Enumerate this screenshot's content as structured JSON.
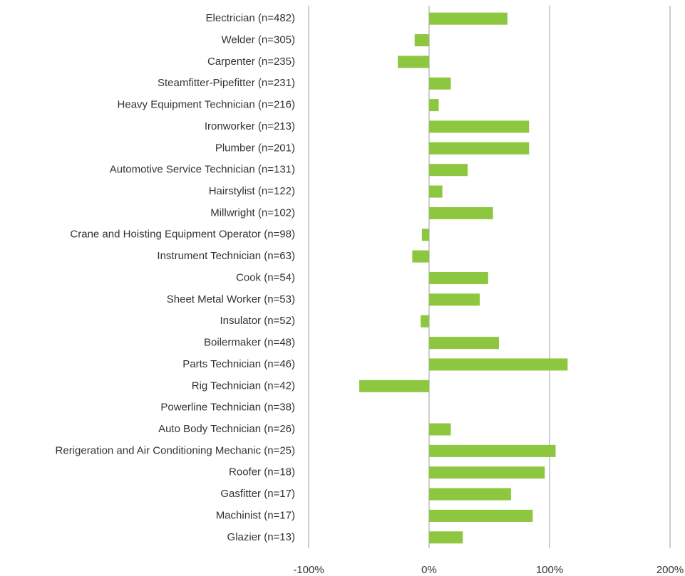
{
  "chart_data": {
    "type": "hbar",
    "color": "#8dc63f",
    "categories": [
      "Electrician (n=482)",
      "Welder (n=305)",
      "Carpenter (n=235)",
      "Steamfitter-Pipefitter (n=231)",
      "Heavy Equipment Technician (n=216)",
      "Ironworker (n=213)",
      "Plumber (n=201)",
      "Automotive Service Technician (n=131)",
      "Hairstylist (n=122)",
      "Millwright (n=102)",
      "Crane and Hoisting Equipment Operator (n=98)",
      "Instrument Technician (n=63)",
      "Cook (n=54)",
      "Sheet Metal Worker (n=53)",
      "Insulator (n=52)",
      "Boilermaker (n=48)",
      "Parts Technician (n=46)",
      "Rig Technician (n=42)",
      "Powerline Technician (n=38)",
      "Auto Body Technician (n=26)",
      "Rerigeration and Air Conditioning Mechanic (n=25)",
      "Roofer (n=18)",
      "Gasfitter (n=17)",
      "Machinist (n=17)",
      "Glazier (n=13)"
    ],
    "values": [
      65,
      -12,
      -26,
      18,
      8,
      83,
      83,
      32,
      11,
      53,
      -6,
      -14,
      49,
      42,
      -7,
      58,
      115,
      -58,
      0,
      18,
      105,
      96,
      68,
      86,
      28
    ],
    "xlim": [
      -100,
      200
    ],
    "xticks": [
      {
        "value": -100,
        "label": "-100%"
      },
      {
        "value": 0,
        "label": "0%"
      },
      {
        "value": 100,
        "label": "100%"
      },
      {
        "value": 200,
        "label": "200%"
      }
    ],
    "grid": true
  }
}
